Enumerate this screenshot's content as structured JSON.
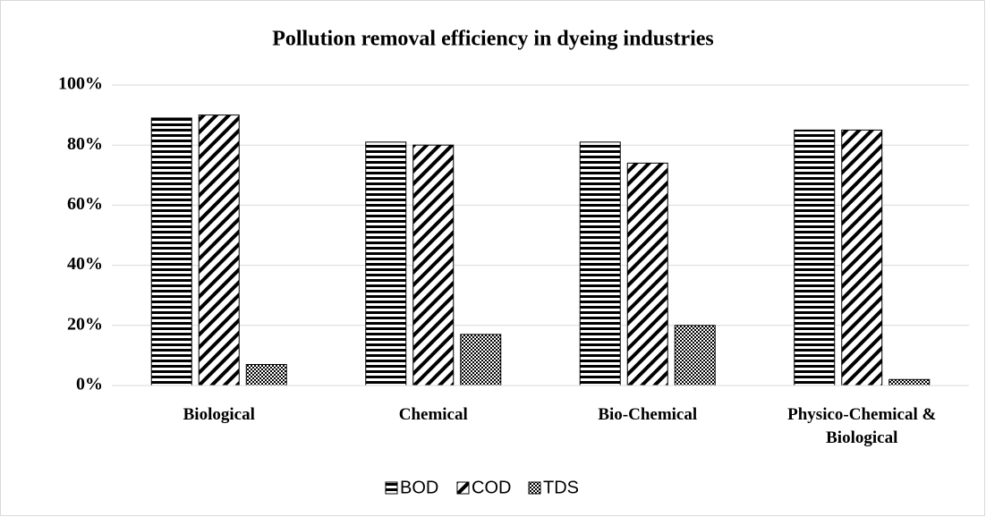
{
  "chart_data": {
    "type": "bar",
    "title": "Pollution  removal efficiency in dyeing industries",
    "categories": [
      "Biological",
      "Chemical",
      "Bio-Chemical",
      "Physico-Chemical & Biological"
    ],
    "series": [
      {
        "name": "BOD",
        "color": "#000000",
        "pattern": "horizontal",
        "values": [
          89,
          81,
          81,
          85
        ]
      },
      {
        "name": "COD",
        "color": "#000000",
        "pattern": "diagonal",
        "values": [
          90,
          80,
          74,
          85
        ]
      },
      {
        "name": "TDS",
        "color": "#000000",
        "pattern": "checker",
        "values": [
          7,
          17,
          20,
          2
        ]
      }
    ],
    "ylim": [
      0,
      100
    ],
    "yticks": [
      {
        "value": 0,
        "label": "0%"
      },
      {
        "value": 20,
        "label": "20%"
      },
      {
        "value": 40,
        "label": "40%"
      },
      {
        "value": 60,
        "label": "60%"
      },
      {
        "value": 80,
        "label": "80%"
      },
      {
        "value": 100,
        "label": "100%"
      }
    ],
    "grid": true,
    "legend": "bottom"
  }
}
